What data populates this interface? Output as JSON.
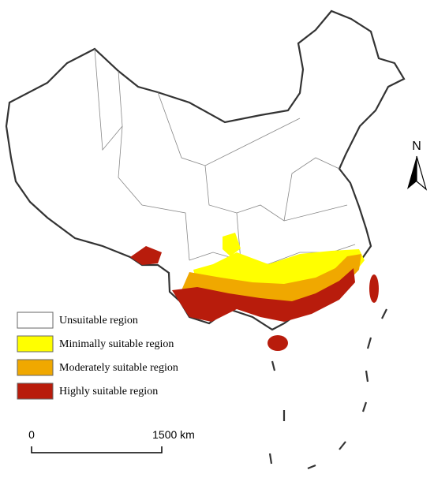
{
  "legend": {
    "items": [
      {
        "label": "Unsuitable region",
        "color": "#ffffff"
      },
      {
        "label": "Minimally suitable region",
        "color": "#ffff00"
      },
      {
        "label": "Moderately suitable region",
        "color": "#f0a800"
      },
      {
        "label": "Highly suitable region",
        "color": "#b81c0c"
      }
    ]
  },
  "north_arrow": {
    "label": "N"
  },
  "scale_bar": {
    "start_label": "0",
    "end_label": "1500 km"
  }
}
